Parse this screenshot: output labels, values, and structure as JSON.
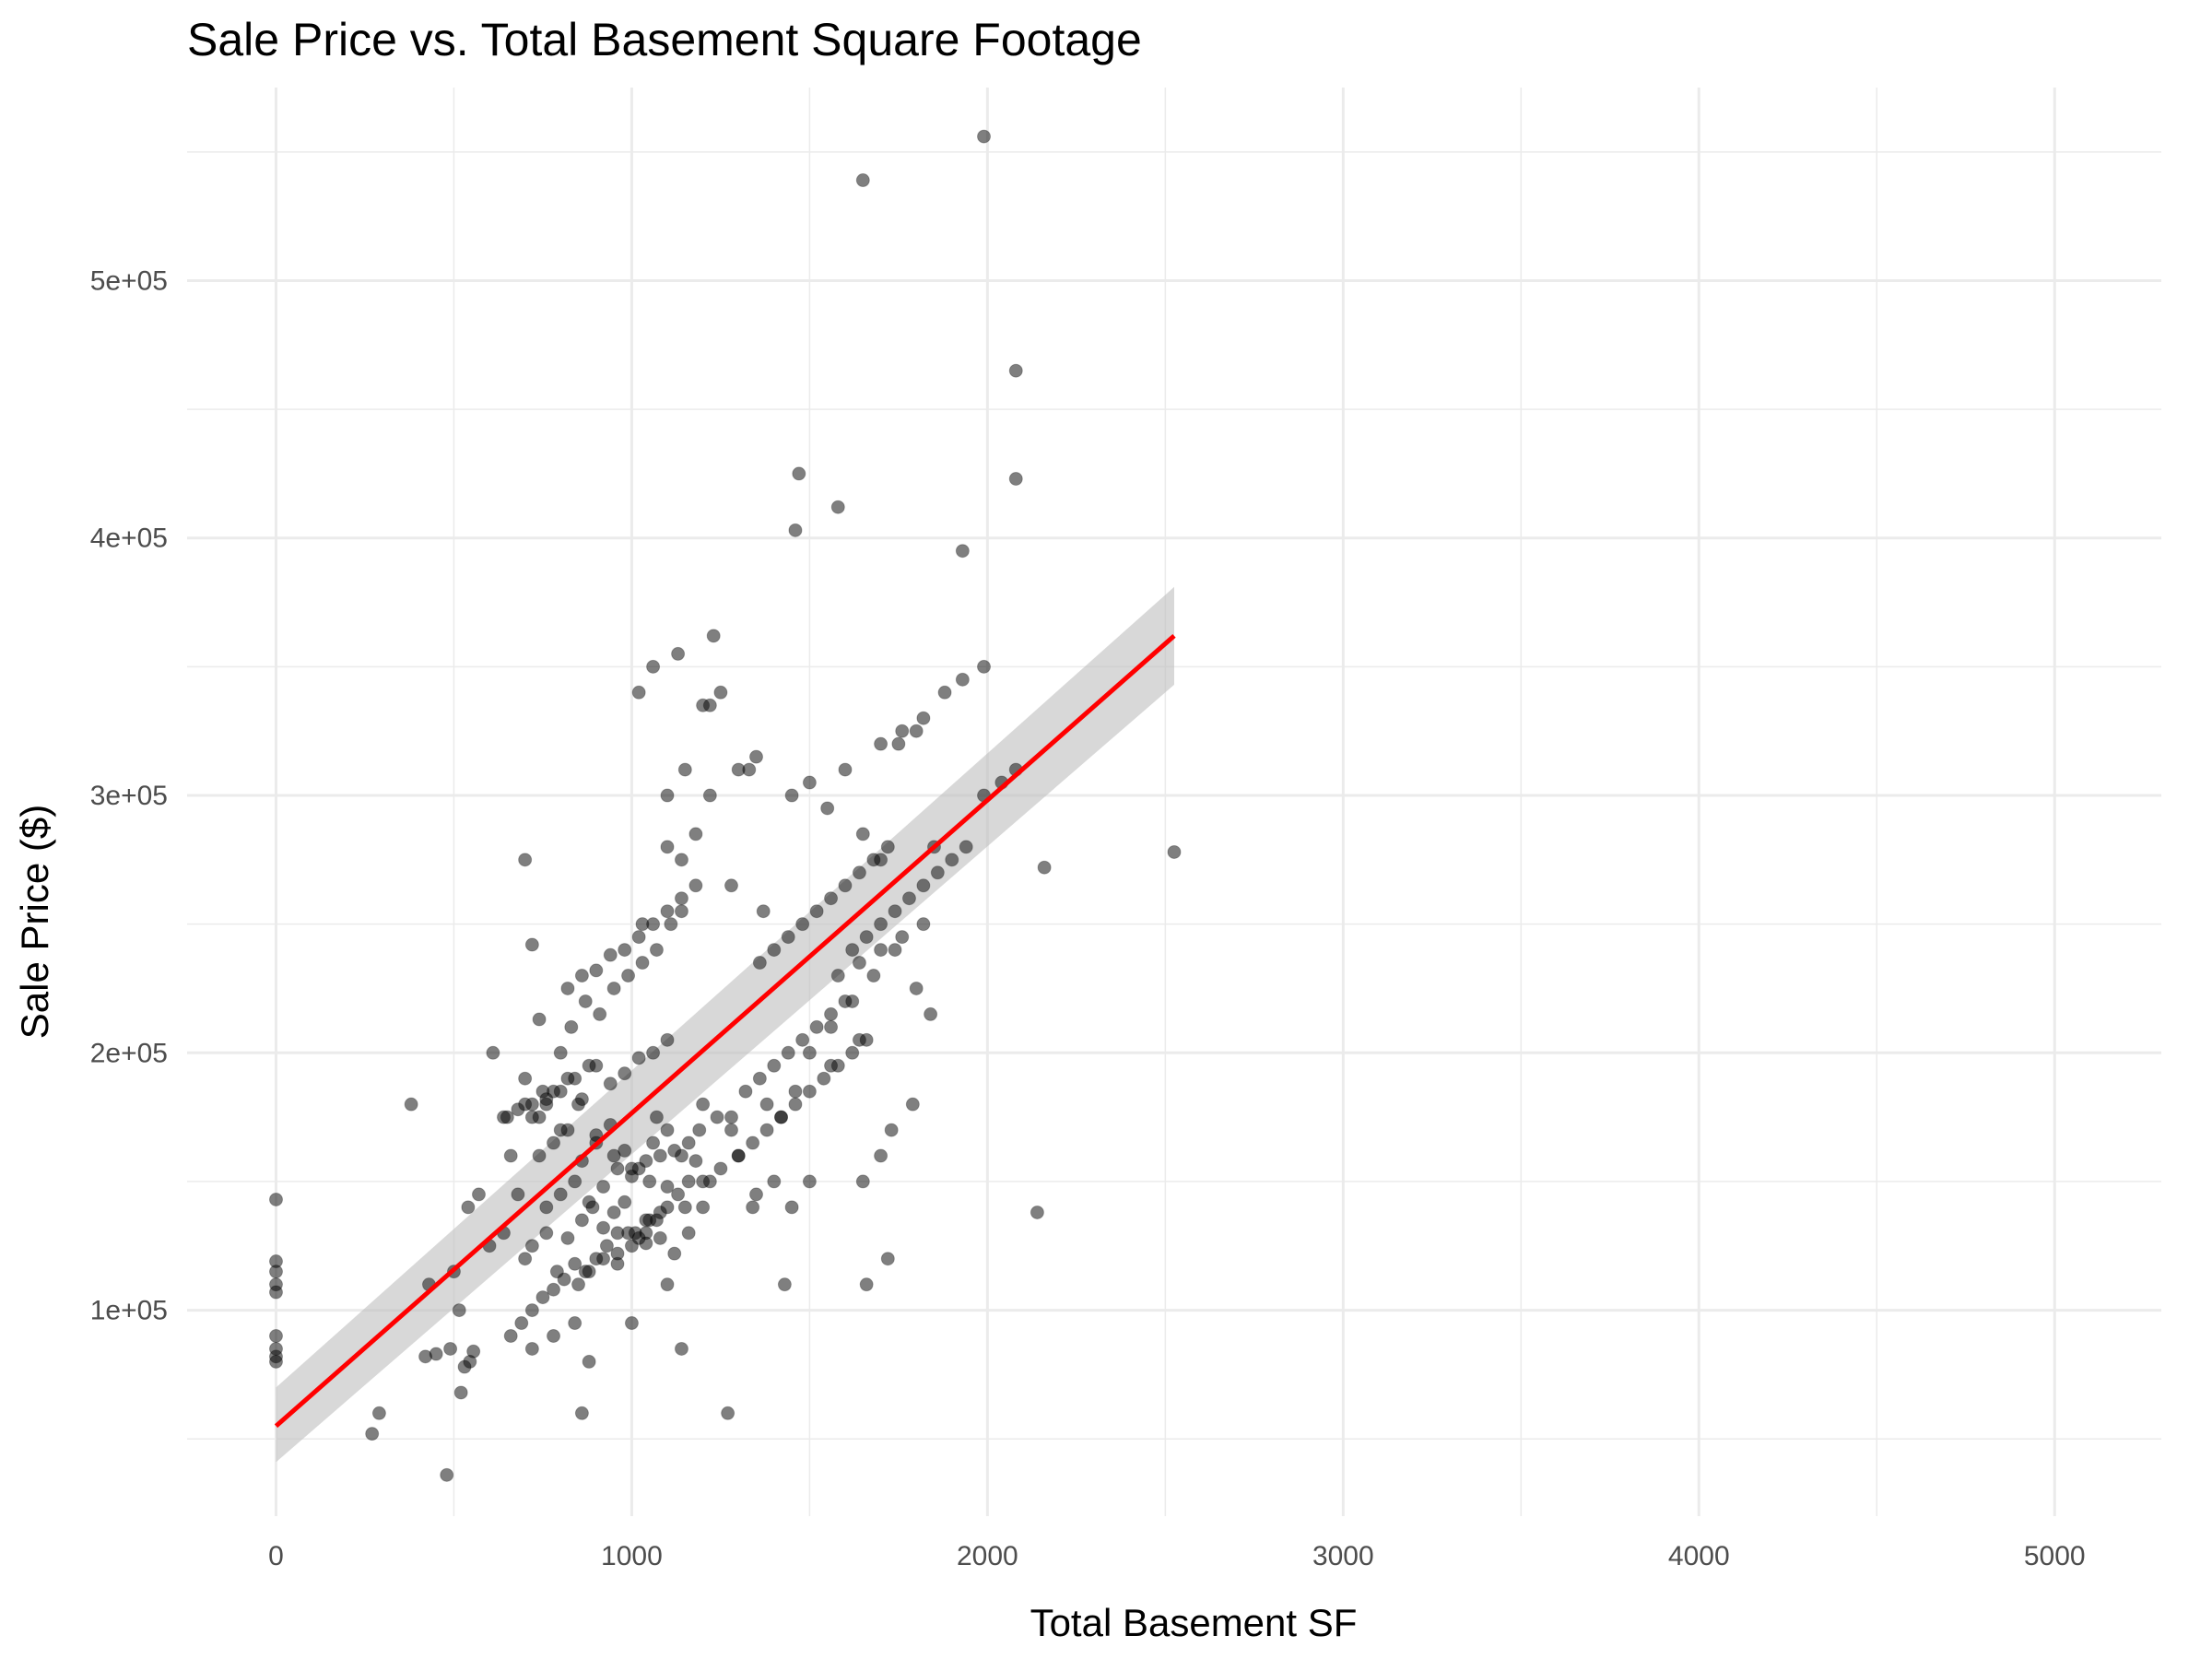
{
  "chart_data": {
    "type": "scatter",
    "title": "Sale Price vs. Total Basement Square Footage",
    "xlabel": "Total Basement SF",
    "ylabel": "Sale Price ($)",
    "xlim": [
      -250,
      5300
    ],
    "ylim": [
      20000,
      575000
    ],
    "x_ticks": [
      0,
      1000,
      2000,
      3000,
      4000,
      5000
    ],
    "x_tick_labels": [
      "0",
      "1000",
      "2000",
      "3000",
      "4000",
      "5000"
    ],
    "y_ticks": [
      100000,
      200000,
      300000,
      400000,
      500000
    ],
    "y_tick_labels": [
      "1e+05",
      "2e+05",
      "3e+05",
      "4e+05",
      "5e+05"
    ],
    "grid": true,
    "legend": "none",
    "colors": {
      "points": "#000000",
      "trend_line": "#ff0000",
      "confidence_band": "#bebebe",
      "grid": "#ebebeb"
    },
    "trend_line": {
      "method": "linear",
      "x": [
        0,
        2525
      ],
      "y": [
        55000,
        362000
      ],
      "ci_lower": [
        41000,
        343000
      ],
      "ci_upper": [
        70000,
        381000
      ]
    },
    "series": [
      {
        "x": [
          0,
          0,
          0,
          0,
          0,
          0,
          0,
          0,
          0,
          270,
          290,
          480,
          490,
          450,
          420,
          520,
          530,
          545,
          555,
          515,
          500,
          380,
          430,
          610,
          660,
          700,
          720,
          740,
          760,
          680,
          640,
          600,
          570,
          540,
          650,
          700,
          750,
          800,
          850,
          900,
          950,
          1000,
          1050,
          1100,
          700,
          720,
          760,
          790,
          820,
          860,
          890,
          920,
          950,
          980,
          1010,
          1040,
          1070,
          1100,
          1130,
          1160,
          740,
          780,
          820,
          860,
          900,
          940,
          980,
          1020,
          1060,
          1100,
          1140,
          1180,
          1220,
          800,
          830,
          870,
          910,
          950,
          990,
          1030,
          1070,
          1110,
          850,
          880,
          920,
          960,
          1000,
          1040,
          1080,
          1120,
          1160,
          1200,
          660,
          690,
          720,
          750,
          780,
          810,
          840,
          870,
          900,
          930,
          960,
          990,
          1020,
          1050,
          1080,
          700,
          740,
          780,
          820,
          860,
          900,
          940,
          980,
          1020,
          1060,
          1100,
          760,
          800,
          840,
          880,
          920,
          960,
          1000,
          1040,
          1080,
          1120,
          1160,
          640,
          680,
          720,
          760,
          800,
          840,
          880,
          820,
          860,
          900,
          940,
          980,
          1020,
          1060,
          1100,
          1140,
          1180,
          1200,
          1240,
          1280,
          1320,
          1360,
          1400,
          1440,
          1480,
          1520,
          1560,
          1600,
          1300,
          1340,
          1380,
          1420,
          1460,
          1500,
          1540,
          1580,
          1620,
          1660,
          1360,
          1400,
          1440,
          1480,
          1520,
          1560,
          1600,
          1640,
          1680,
          1720,
          1200,
          1250,
          1300,
          1350,
          1400,
          1450,
          1100,
          1150,
          1200,
          1250,
          1300,
          1350,
          1020,
          1060,
          1100,
          1140,
          1180,
          1220,
          1500,
          1560,
          1620,
          1680,
          1740,
          1800,
          1840,
          1450,
          1500,
          1550,
          1600,
          1650,
          1700,
          1750,
          1800,
          1850,
          1620,
          1660,
          1700,
          1740,
          1780,
          1820,
          1860,
          1900,
          1940,
          1990,
          2040,
          2080,
          1700,
          1760,
          1820,
          1880,
          1930,
          1990,
          1580,
          1640,
          1700,
          1760,
          1820,
          1650,
          1700,
          1730,
          1790,
          1460,
          1560,
          1640,
          1990,
          1650,
          2080,
          2080,
          1470,
          1460,
          1580,
          1930,
          2160,
          2140,
          2525,
          1030,
          1140,
          1220,
          1280,
          1330,
          1370,
          1130,
          1230,
          720,
          780,
          840,
          880,
          1000,
          1100,
          1140,
          860,
          1270,
          1150,
          1340,
          1500,
          1430,
          1660,
          1720,
          720,
          1070,
          1280,
          1380,
          1420,
          1190,
          960,
          1040
        ],
        "y": [
          143000,
          119000,
          115000,
          110000,
          107000,
          90000,
          85000,
          82000,
          80000,
          52000,
          60000,
          36000,
          85000,
          83000,
          82000,
          68000,
          78000,
          80000,
          84000,
          100000,
          115000,
          180000,
          110000,
          200000,
          160000,
          275000,
          242000,
          213000,
          180000,
          145000,
          130000,
          125000,
          145000,
          140000,
          175000,
          190000,
          185000,
          170000,
          180000,
          165000,
          160000,
          155000,
          150000,
          148000,
          120000,
          125000,
          130000,
          115000,
          128000,
          135000,
          140000,
          132000,
          138000,
          142000,
          130000,
          126000,
          135000,
          140000,
          145000,
          150000,
          160000,
          165000,
          170000,
          158000,
          168000,
          172000,
          162000,
          155000,
          165000,
          170000,
          160000,
          158000,
          150000,
          200000,
          210000,
          220000,
          215000,
          225000,
          230000,
          235000,
          240000,
          250000,
          110000,
          115000,
          120000,
          118000,
          125000,
          130000,
          128000,
          122000,
          130000,
          140000,
          90000,
          95000,
          100000,
          105000,
          108000,
          112000,
          118000,
          115000,
          120000,
          125000,
          122000,
          130000,
          128000,
          135000,
          138000,
          180000,
          175000,
          185000,
          190000,
          182000,
          195000,
          188000,
          192000,
          198000,
          200000,
          205000,
          140000,
          145000,
          150000,
          142000,
          148000,
          155000,
          152000,
          158000,
          160000,
          162000,
          165000,
          175000,
          178000,
          180000,
          182000,
          185000,
          190000,
          195000,
          225000,
          230000,
          232000,
          238000,
          240000,
          245000,
          250000,
          255000,
          260000,
          265000,
          180000,
          175000,
          170000,
          185000,
          190000,
          195000,
          200000,
          205000,
          210000,
          215000,
          220000,
          160000,
          165000,
          170000,
          175000,
          180000,
          185000,
          190000,
          195000,
          200000,
          205000,
          235000,
          240000,
          245000,
          250000,
          255000,
          260000,
          265000,
          270000,
          275000,
          280000,
          150000,
          155000,
          160000,
          145000,
          150000,
          140000,
          300000,
          310000,
          335000,
          340000,
          310000,
          315000,
          340000,
          350000,
          280000,
          275000,
          285000,
          300000,
          200000,
          210000,
          220000,
          230000,
          240000,
          225000,
          215000,
          300000,
          305000,
          295000,
          310000,
          285000,
          275000,
          320000,
          325000,
          280000,
          240000,
          245000,
          250000,
          255000,
          260000,
          265000,
          270000,
          275000,
          280000,
          300000,
          305000,
          310000,
          320000,
          325000,
          330000,
          340000,
          345000,
          350000,
          230000,
          235000,
          240000,
          245000,
          250000,
          150000,
          160000,
          170000,
          180000,
          185000,
          195000,
          205000,
          556000,
          539000,
          465000,
          423000,
          425000,
          403000,
          412000,
          395000,
          272000,
          138000,
          278000,
          250000,
          255000,
          335000,
          265000,
          310000,
          255000,
          355000,
          362000,
          85000,
          90000,
          95000,
          80000,
          95000,
          110000,
          85000,
          60000,
          60000,
          140000,
          140000,
          150000,
          110000,
          110000,
          120000,
          175000,
          175000,
          175000,
          180000,
          175000,
          170000,
          130000,
          135000
        ]
      }
    ]
  }
}
